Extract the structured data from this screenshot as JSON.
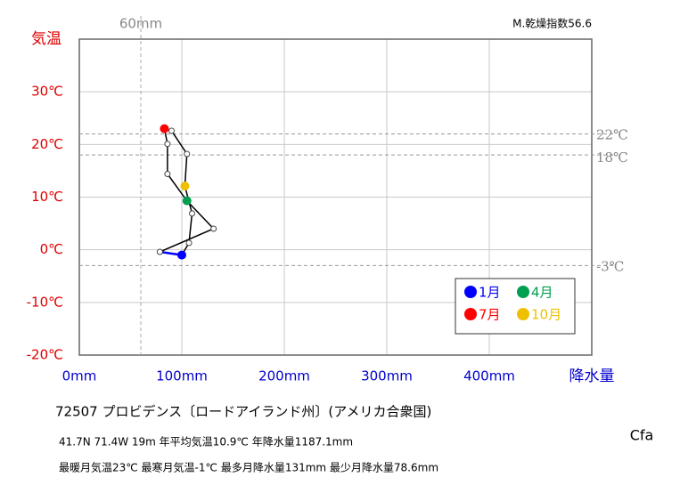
{
  "chart_data": {
    "type": "climograph",
    "y_axis_label": "気温",
    "x_axis_label": "降水量",
    "index_label": "M.乾燥指数56.6",
    "xlim": [
      0,
      500
    ],
    "ylim": [
      -20,
      40
    ],
    "xticks": [
      {
        "value": 0,
        "label": "0mm"
      },
      {
        "value": 100,
        "label": "100mm"
      },
      {
        "value": 200,
        "label": "200mm"
      },
      {
        "value": 300,
        "label": "300mm"
      },
      {
        "value": 400,
        "label": "400mm"
      }
    ],
    "yticks": [
      {
        "value": 30,
        "label": "30℃"
      },
      {
        "value": 20,
        "label": "20℃"
      },
      {
        "value": 10,
        "label": "10℃"
      },
      {
        "value": 0,
        "label": "0℃"
      },
      {
        "value": -10,
        "label": "-10℃"
      },
      {
        "value": -20,
        "label": "-20℃"
      }
    ],
    "grid": true,
    "reference_x": [
      {
        "value": 60,
        "label": "60mm"
      }
    ],
    "reference_y": [
      {
        "value": 22,
        "label": "22℃"
      },
      {
        "value": 18,
        "label": "18℃"
      },
      {
        "value": -3,
        "label": "-3℃"
      }
    ],
    "x": [
      100,
      78.6,
      131,
      105,
      86,
      86,
      83,
      90,
      105,
      103,
      110,
      107
    ],
    "series": [
      {
        "color": "#000000",
        "values": [
          -1,
          -0.4,
          4,
          9.3,
          14.4,
          20.1,
          23,
          22.6,
          18.2,
          12.1,
          6.9,
          1.3
        ]
      }
    ],
    "point_colors": [
      "#0000ff",
      null,
      null,
      "#00a050",
      null,
      null,
      "#ff0000",
      null,
      null,
      "#f0c000",
      null,
      null
    ],
    "legend": [
      {
        "name": "1月",
        "color": "#0000ff"
      },
      {
        "name": "4月",
        "color": "#00a050"
      },
      {
        "name": "7月",
        "color": "#ff0000"
      },
      {
        "name": "10月",
        "color": "#f0c000"
      }
    ]
  },
  "info": {
    "station": "72507  プロビデンス〔ロードアイランド州〕(アメリカ合衆国)",
    "line1": "41.7N  71.4W  19m  年平均気温10.9℃ 年降水量1187.1mm",
    "line2": "最暖月気温23℃ 最寒月気温-1℃ 最多月降水量131mm 最少月降水量78.6mm",
    "climate": "Cfa"
  }
}
